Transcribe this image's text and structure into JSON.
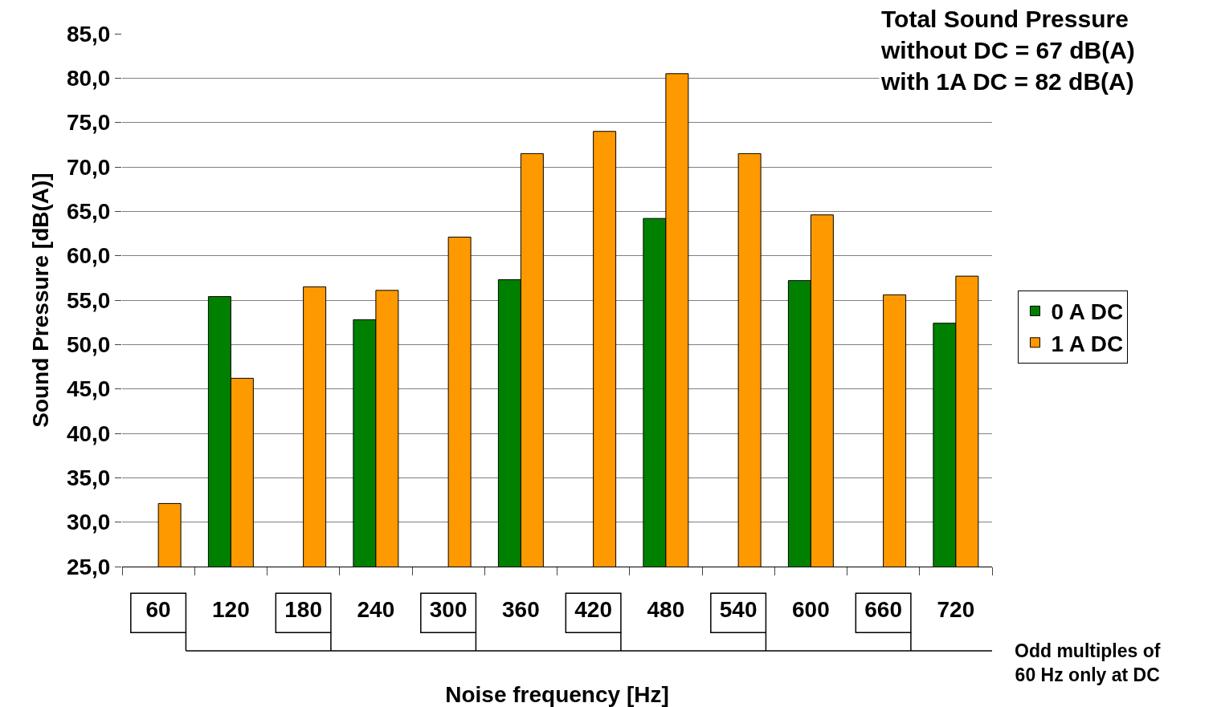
{
  "chart_data": {
    "type": "bar",
    "title": "Total Sound Pressure\nwithout DC = 67 dB(A)\nwith 1A DC = 82 dB(A)",
    "xlabel": "Noise frequency [Hz]",
    "ylabel": "Sound Pressure [dB(A)]",
    "annotations": [
      "Odd multiples of\n60 Hz only at DC"
    ],
    "categories": [
      "60",
      "120",
      "180",
      "240",
      "300",
      "360",
      "420",
      "480",
      "540",
      "600",
      "660",
      "720"
    ],
    "series": [
      {
        "name": "0 A DC",
        "color": "#008000",
        "values": [
          null,
          55.4,
          null,
          52.8,
          null,
          57.3,
          null,
          64.2,
          null,
          57.2,
          null,
          52.4
        ]
      },
      {
        "name": "1 A DC",
        "color": "#ff9900",
        "values": [
          32.1,
          46.2,
          56.5,
          56.1,
          62.1,
          71.5,
          74.0,
          80.5,
          71.5,
          64.6,
          55.6,
          57.7
        ]
      }
    ],
    "ylim": [
      25,
      85
    ],
    "yticks": [
      {
        "value": 25,
        "label": "25,0"
      },
      {
        "value": 30,
        "label": "30,0"
      },
      {
        "value": 35,
        "label": "35,0"
      },
      {
        "value": 40,
        "label": "40,0"
      },
      {
        "value": 45,
        "label": "45,0"
      },
      {
        "value": 50,
        "label": "50,0"
      },
      {
        "value": 55,
        "label": "55,0"
      },
      {
        "value": 60,
        "label": "60,0"
      },
      {
        "value": 65,
        "label": "65,0"
      },
      {
        "value": 70,
        "label": "70,0"
      },
      {
        "value": 75,
        "label": "75,0"
      },
      {
        "value": 80,
        "label": "80,0"
      },
      {
        "value": 85,
        "label": "85,0"
      }
    ],
    "grid": "y",
    "legend": "right"
  }
}
